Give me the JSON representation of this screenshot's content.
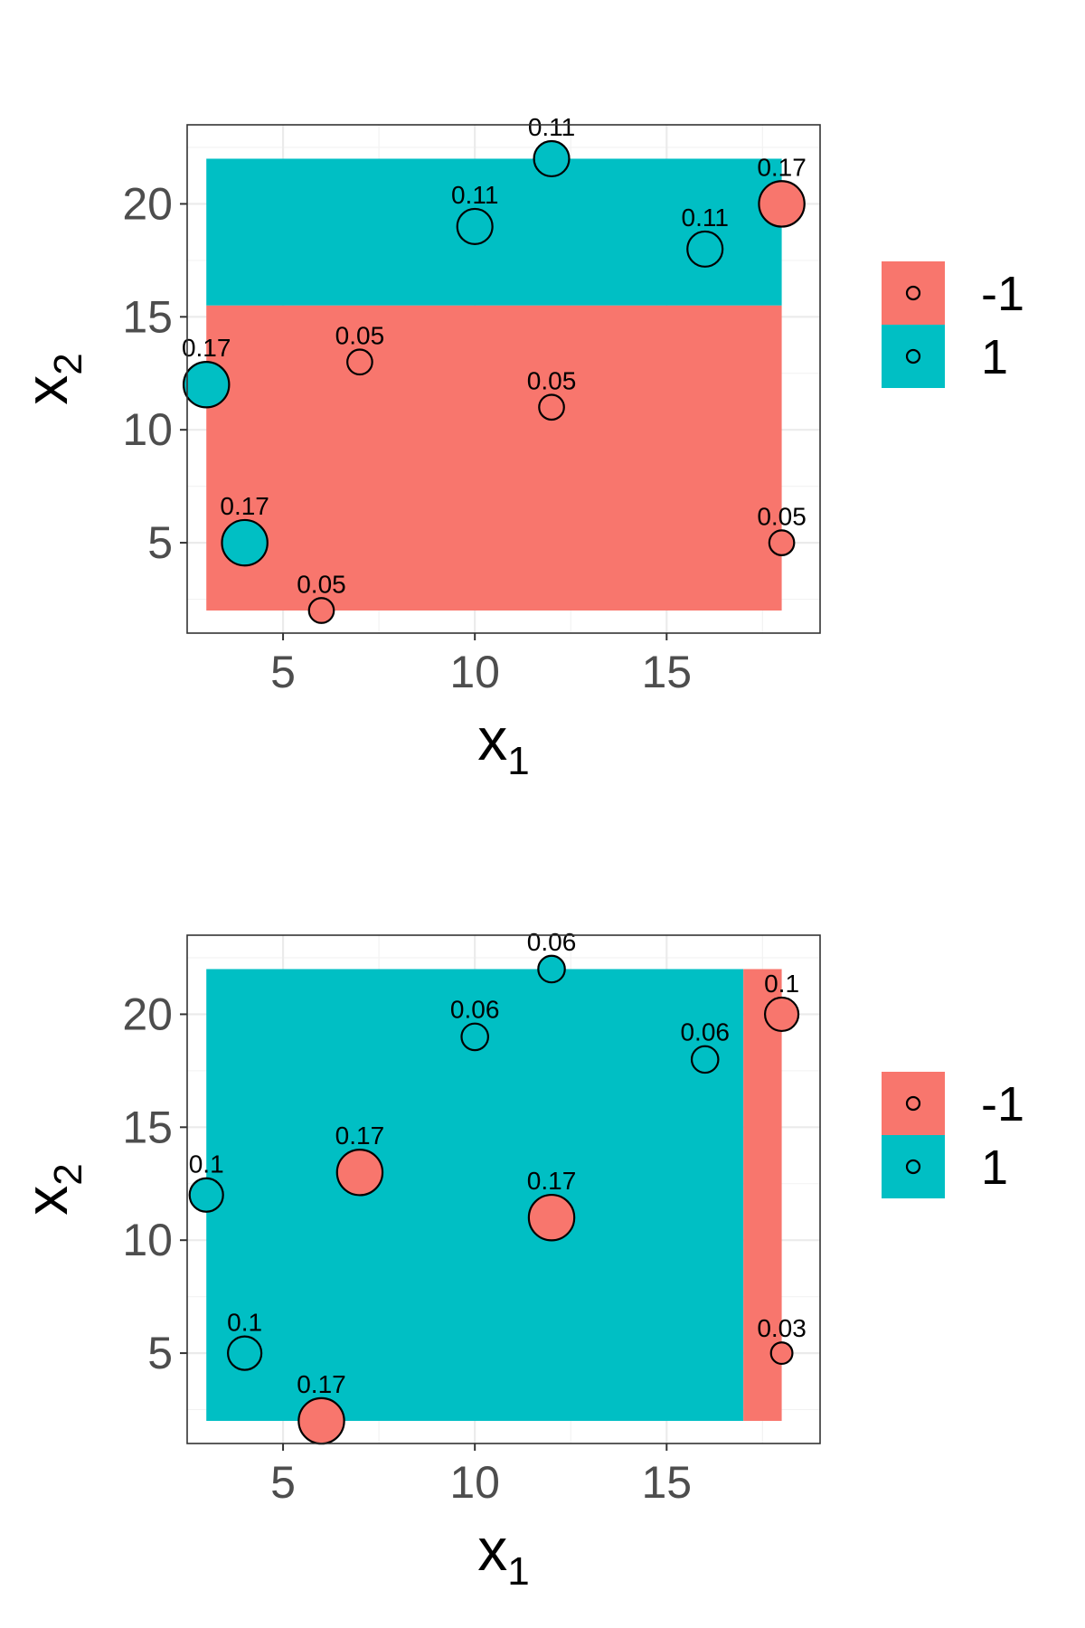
{
  "chart_data": [
    {
      "type": "scatter",
      "title": "",
      "xlabel": "x",
      "xlabel_sub": "1",
      "ylabel": "x",
      "ylabel_sub": "2",
      "xlim": [
        2.5,
        19
      ],
      "ylim": [
        1,
        23.5
      ],
      "x_ticks": [
        5,
        10,
        15
      ],
      "y_ticks": [
        5,
        10,
        15,
        20
      ],
      "grid": true,
      "legend": {
        "placement": "right",
        "entries": [
          {
            "label": "-1",
            "color": "#F8766D"
          },
          {
            "label": "1",
            "color": "#00BFC4"
          }
        ]
      },
      "regions": [
        {
          "x": [
            3,
            18
          ],
          "y": [
            15.5,
            22
          ],
          "class": "1"
        },
        {
          "x": [
            3,
            18
          ],
          "y": [
            2,
            15.5
          ],
          "class": "-1"
        }
      ],
      "points": [
        {
          "x": 3,
          "y": 12,
          "class": "1",
          "weight": "0.17"
        },
        {
          "x": 4,
          "y": 5,
          "class": "1",
          "weight": "0.17"
        },
        {
          "x": 6,
          "y": 2,
          "class": "-1",
          "weight": "0.05"
        },
        {
          "x": 7,
          "y": 13,
          "class": "-1",
          "weight": "0.05"
        },
        {
          "x": 10,
          "y": 19,
          "class": "1",
          "weight": "0.11"
        },
        {
          "x": 12,
          "y": 22,
          "class": "1",
          "weight": "0.11"
        },
        {
          "x": 12,
          "y": 11,
          "class": "-1",
          "weight": "0.05"
        },
        {
          "x": 16,
          "y": 18,
          "class": "1",
          "weight": "0.11"
        },
        {
          "x": 18,
          "y": 20,
          "class": "-1",
          "weight": "0.17"
        },
        {
          "x": 18,
          "y": 5,
          "class": "-1",
          "weight": "0.05"
        }
      ]
    },
    {
      "type": "scatter",
      "title": "",
      "xlabel": "x",
      "xlabel_sub": "1",
      "ylabel": "x",
      "ylabel_sub": "2",
      "xlim": [
        2.5,
        19
      ],
      "ylim": [
        1,
        23.5
      ],
      "x_ticks": [
        5,
        10,
        15
      ],
      "y_ticks": [
        5,
        10,
        15,
        20
      ],
      "grid": true,
      "legend": {
        "placement": "right",
        "entries": [
          {
            "label": "-1",
            "color": "#F8766D"
          },
          {
            "label": "1",
            "color": "#00BFC4"
          }
        ]
      },
      "regions": [
        {
          "x": [
            3,
            17
          ],
          "y": [
            2,
            22
          ],
          "class": "1"
        },
        {
          "x": [
            17,
            18
          ],
          "y": [
            2,
            22
          ],
          "class": "-1"
        }
      ],
      "points": [
        {
          "x": 3,
          "y": 12,
          "class": "1",
          "weight": "0.1"
        },
        {
          "x": 4,
          "y": 5,
          "class": "1",
          "weight": "0.1"
        },
        {
          "x": 6,
          "y": 2,
          "class": "-1",
          "weight": "0.17"
        },
        {
          "x": 7,
          "y": 13,
          "class": "-1",
          "weight": "0.17"
        },
        {
          "x": 10,
          "y": 19,
          "class": "1",
          "weight": "0.06"
        },
        {
          "x": 12,
          "y": 22,
          "class": "1",
          "weight": "0.06"
        },
        {
          "x": 12,
          "y": 11,
          "class": "-1",
          "weight": "0.17"
        },
        {
          "x": 16,
          "y": 18,
          "class": "1",
          "weight": "0.06"
        },
        {
          "x": 18,
          "y": 20,
          "class": "-1",
          "weight": "0.1"
        },
        {
          "x": 18,
          "y": 5,
          "class": "-1",
          "weight": "0.03"
        }
      ]
    }
  ]
}
